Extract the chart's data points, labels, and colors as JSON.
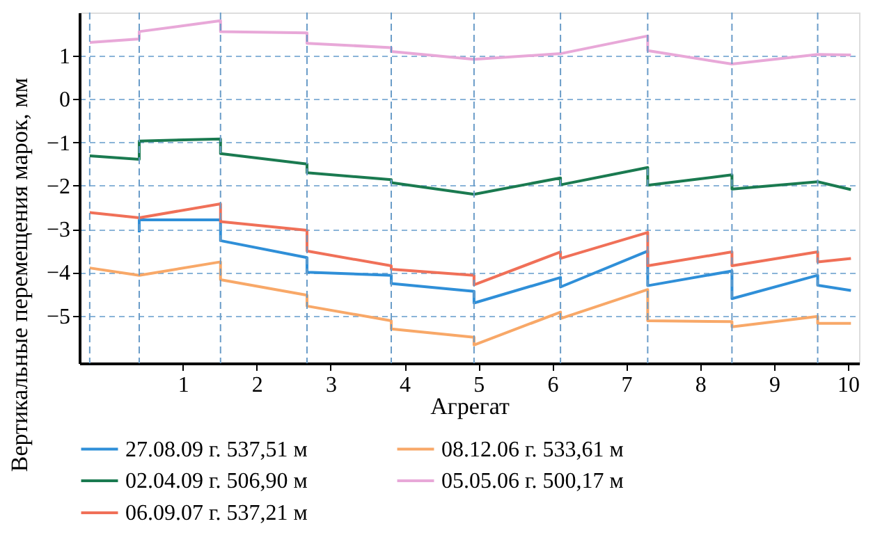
{
  "chart_data": {
    "type": "line",
    "xlabel": "Агрегат",
    "ylabel": "Вертикальные перемещения марок, мм",
    "xlim": [
      -0.4,
      10.15
    ],
    "xticks": [
      1,
      2,
      3,
      4,
      5,
      6,
      7,
      8,
      9,
      10
    ],
    "ylim": [
      -6.1,
      2.0
    ],
    "yticks": [
      -5,
      -4,
      -3,
      -2,
      -1,
      0,
      1
    ],
    "grid": "y",
    "legend": "bottom",
    "marker": "none",
    "line_style": "solid",
    "ref_lines": [
      {
        "axis": "x",
        "value": -0.26,
        "label": null,
        "color": "#6a9cc8",
        "line_style": "dashed"
      },
      {
        "axis": "x",
        "value": 0.41,
        "label": null,
        "color": "#6a9cc8",
        "line_style": "dashed"
      },
      {
        "axis": "x",
        "value": 1.51,
        "label": null,
        "color": "#6a9cc8",
        "line_style": "dashed"
      },
      {
        "axis": "x",
        "value": 2.68,
        "label": null,
        "color": "#6a9cc8",
        "line_style": "dashed"
      },
      {
        "axis": "x",
        "value": 3.82,
        "label": null,
        "color": "#6a9cc8",
        "line_style": "dashed"
      },
      {
        "axis": "x",
        "value": 4.94,
        "label": null,
        "color": "#6a9cc8",
        "line_style": "dashed"
      },
      {
        "axis": "x",
        "value": 6.11,
        "label": null,
        "color": "#6a9cc8",
        "line_style": "dashed"
      },
      {
        "axis": "x",
        "value": 7.29,
        "label": null,
        "color": "#6a9cc8",
        "line_style": "dashed"
      },
      {
        "axis": "x",
        "value": 8.43,
        "label": null,
        "color": "#6a9cc8",
        "line_style": "dashed"
      },
      {
        "axis": "x",
        "value": 9.59,
        "label": null,
        "color": "#6a9cc8",
        "line_style": "dashed"
      }
    ],
    "series": [
      {
        "name": "27.08.09 г. 537,51 м",
        "color": "#2f8fd8",
        "x": [
          0.41,
          0.41,
          1.51,
          1.51,
          2.68,
          2.68,
          3.82,
          3.82,
          4.94,
          4.94,
          6.11,
          6.11,
          7.29,
          7.29,
          8.43,
          8.43,
          9.59,
          9.59,
          10.04
        ],
        "values": [
          -3.08,
          -2.79,
          -2.79,
          -3.27,
          -3.66,
          -4.0,
          -4.07,
          -4.26,
          -4.44,
          -4.71,
          -4.12,
          -4.34,
          -3.51,
          -4.31,
          -3.97,
          -4.61,
          -4.07,
          -4.3,
          -4.42
        ]
      },
      {
        "name": "08.12.06 г. 533,61 м",
        "color": "#f8a868",
        "x": [
          -0.26,
          0.41,
          1.51,
          1.51,
          2.68,
          2.68,
          3.82,
          3.82,
          4.94,
          4.94,
          6.11,
          6.11,
          7.29,
          7.29,
          8.43,
          8.43,
          9.59,
          9.59,
          10.04
        ],
        "values": [
          -3.9,
          -4.07,
          -3.76,
          -4.17,
          -4.53,
          -4.78,
          -5.12,
          -5.31,
          -5.5,
          -5.68,
          -4.92,
          -5.07,
          -4.4,
          -5.12,
          -5.14,
          -5.26,
          -5.02,
          -5.18,
          -5.18
        ]
      },
      {
        "name": "02.04.09 г. 506,90 м",
        "color": "#1a7a50",
        "x": [
          -0.26,
          0.41,
          0.41,
          1.51,
          1.51,
          2.68,
          2.68,
          3.82,
          3.82,
          4.94,
          6.11,
          6.11,
          7.29,
          7.29,
          8.43,
          8.43,
          9.59,
          10.04
        ],
        "values": [
          -1.31,
          -1.39,
          -0.97,
          -0.92,
          -1.26,
          -1.5,
          -1.7,
          -1.86,
          -1.93,
          -2.2,
          -1.82,
          -1.98,
          -1.58,
          -1.99,
          -1.75,
          -2.08,
          -1.91,
          -2.09
        ]
      },
      {
        "name": "05.05.06 г. 500,17 м",
        "color": "#e8a8d8",
        "x": [
          -0.26,
          0.41,
          0.41,
          1.51,
          1.51,
          2.68,
          2.68,
          3.82,
          3.82,
          4.94,
          6.11,
          7.29,
          7.29,
          8.43,
          9.59,
          10.04
        ],
        "values": [
          1.31,
          1.39,
          1.56,
          1.81,
          1.56,
          1.53,
          1.29,
          1.19,
          1.1,
          0.92,
          1.05,
          1.46,
          1.12,
          0.81,
          1.03,
          1.02
        ]
      },
      {
        "name": "06.09.07 г. 537,21 м",
        "color": "#f07058",
        "x": [
          -0.26,
          0.41,
          1.51,
          1.51,
          2.68,
          2.68,
          3.82,
          3.82,
          4.94,
          4.94,
          6.11,
          6.11,
          7.29,
          7.29,
          8.43,
          8.43,
          9.59,
          9.59,
          10.04
        ],
        "values": [
          -2.62,
          -2.74,
          -2.42,
          -2.83,
          -3.03,
          -3.51,
          -3.85,
          -3.93,
          -4.07,
          -4.29,
          -3.53,
          -3.68,
          -3.08,
          -3.85,
          -3.53,
          -3.85,
          -3.53,
          -3.76,
          -3.68
        ]
      }
    ]
  }
}
